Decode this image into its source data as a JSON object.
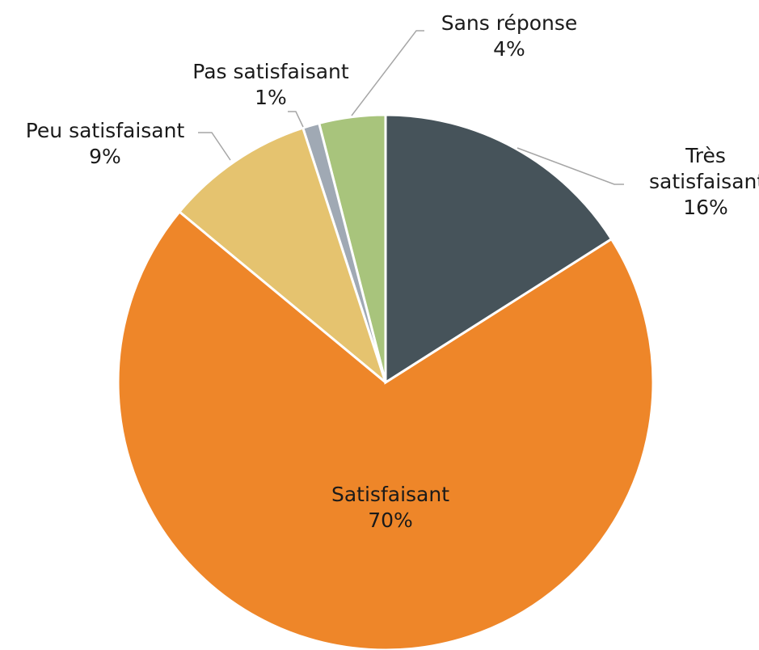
{
  "chart_data": {
    "type": "pie",
    "categories": [
      "Très satisfaisant",
      "Satisfaisant",
      "Peu satisfaisant",
      "Pas satisfaisant",
      "Sans réponse"
    ],
    "values": [
      16,
      70,
      9,
      1,
      4
    ],
    "value_labels": [
      "16%",
      "70%",
      "9%",
      "1%",
      "4%"
    ],
    "colors": [
      "#46535a",
      "#ee8629",
      "#e5c36f",
      "#a0a9b4",
      "#a8c47c"
    ]
  }
}
